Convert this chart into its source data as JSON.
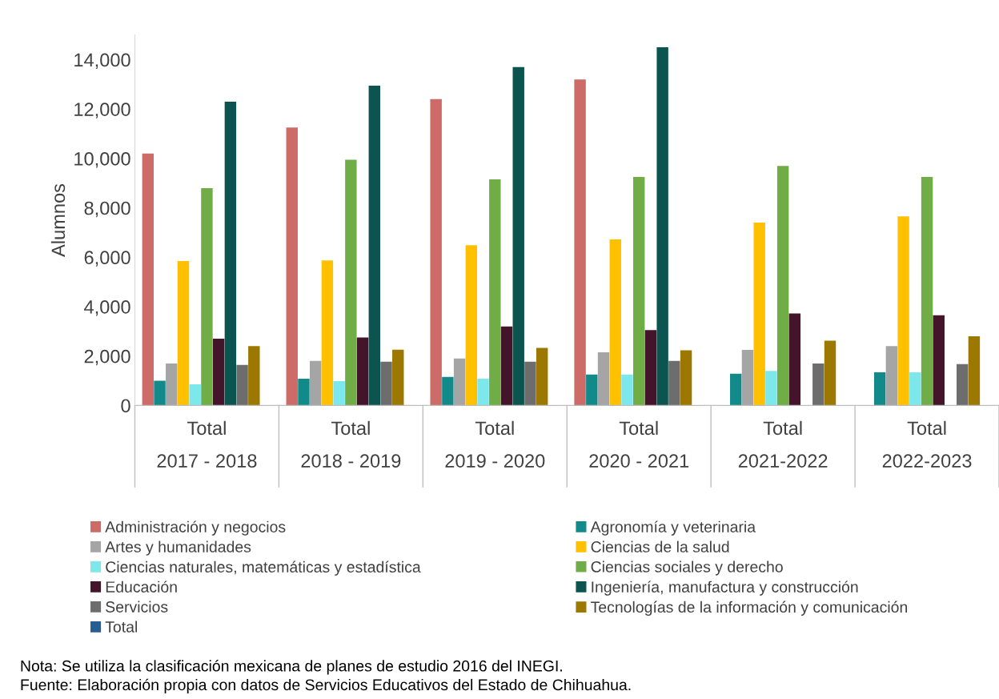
{
  "chart_data": {
    "type": "bar",
    "ylabel": "Alumnos",
    "categories": [
      "Total\n2017 - 2018",
      "Total\n2018 - 2019",
      "Total\n2019 - 2020",
      "Total\n2020 - 2021",
      "Total\n2021-2022",
      "Total\n2022-2023"
    ],
    "ylim": [
      0,
      15000
    ],
    "yticks": [
      {
        "value": 0,
        "label": "0"
      },
      {
        "value": 2000,
        "label": "2,000"
      },
      {
        "value": 4000,
        "label": "4,000"
      },
      {
        "value": 6000,
        "label": "6,000"
      },
      {
        "value": 8000,
        "label": "8,000"
      },
      {
        "value": 10000,
        "label": "10,000"
      },
      {
        "value": 12000,
        "label": "12,000"
      },
      {
        "value": 14000,
        "label": "14,000"
      }
    ],
    "grid": false,
    "legend": "bottom",
    "series": [
      {
        "name": "Administración y negocios",
        "color": "#cc6b67",
        "values": [
          10200,
          11250,
          12400,
          13200,
          null,
          null
        ]
      },
      {
        "name": "Agronomía y veterinaria",
        "color": "#138a8a",
        "values": [
          1000,
          1080,
          1150,
          1250,
          1280,
          1340
        ]
      },
      {
        "name": "Artes y humanidades",
        "color": "#a5a5a5",
        "values": [
          1700,
          1800,
          1900,
          2150,
          2250,
          2400
        ]
      },
      {
        "name": "Ciencias de la salud",
        "color": "#ffc000",
        "values": [
          5850,
          5870,
          6490,
          6720,
          7400,
          7650
        ]
      },
      {
        "name": "Ciencias naturales, matemáticas y estadística",
        "color": "#7de8ec",
        "values": [
          850,
          980,
          1080,
          1250,
          1400,
          1340
        ]
      },
      {
        "name": "Ciencias sociales y derecho",
        "color": "#70ad47",
        "values": [
          8800,
          9950,
          9150,
          9250,
          9700,
          9250
        ]
      },
      {
        "name": "Educación",
        "color": "#44142a",
        "values": [
          2700,
          2750,
          3200,
          3050,
          3720,
          3650
        ]
      },
      {
        "name": "Ingeniería, manufactura y construcción",
        "color": "#0b5450",
        "values": [
          12300,
          12950,
          13700,
          14500,
          null,
          null
        ]
      },
      {
        "name": "Servicios",
        "color": "#6d6d6d",
        "values": [
          1640,
          1770,
          1770,
          1800,
          1700,
          1670
        ]
      },
      {
        "name": "Tecnologías de la información y comunicación",
        "color": "#9c7800",
        "values": [
          2400,
          2260,
          2330,
          2230,
          2620,
          2800
        ]
      },
      {
        "name": "Total",
        "color": "#255e91",
        "values": [
          null,
          null,
          null,
          null,
          null,
          null
        ]
      }
    ],
    "annotations": [
      "Nota: Se utiliza la clasificación mexicana de planes de estudio 2016 del INEGI.",
      "Fuente: Elaboración propia con datos de Servicios Educativos del Estado de Chihuahua."
    ]
  }
}
